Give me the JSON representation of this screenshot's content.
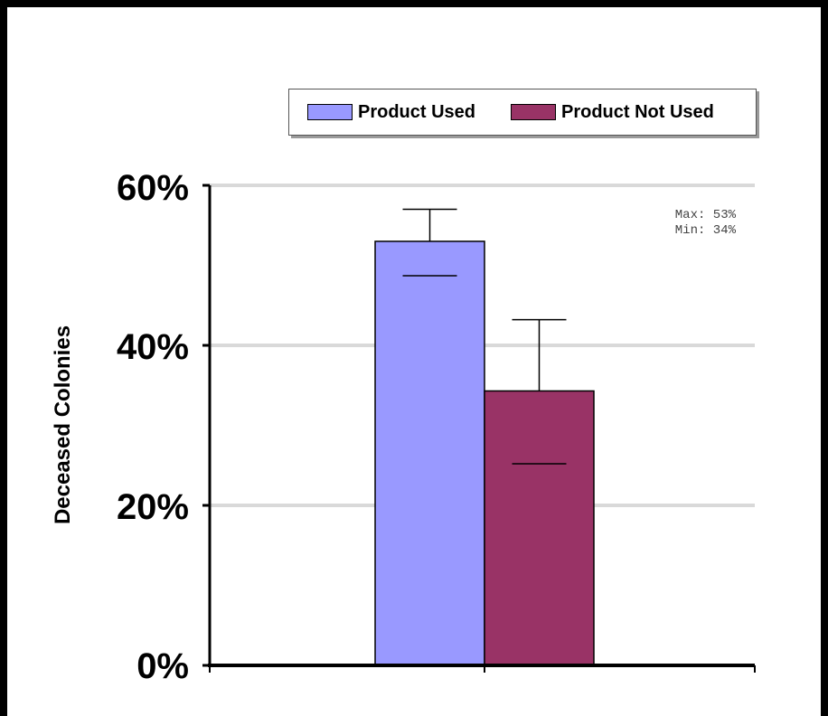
{
  "chart_data": {
    "type": "bar",
    "categories": [
      ""
    ],
    "series": [
      {
        "name": "Product Used",
        "values": [
          53
        ],
        "error_high": [
          57
        ],
        "error_low": [
          48.7
        ],
        "color": "#9999ff"
      },
      {
        "name": "Product Not Used",
        "values": [
          34.3
        ],
        "error_high": [
          43.2
        ],
        "error_low": [
          25.2
        ],
        "color": "#993366"
      }
    ],
    "title": "",
    "xlabel": "",
    "ylabel": "Deceased Colonies",
    "ylim": [
      0,
      60
    ],
    "yticks": [
      {
        "value": 0,
        "label": "0%"
      },
      {
        "value": 20,
        "label": "20%"
      },
      {
        "value": 40,
        "label": "40%"
      },
      {
        "value": 60,
        "label": "60%"
      }
    ],
    "grid": true,
    "legend_position": "top",
    "annotations": {
      "max": "Max: 53%",
      "min": "Min: 34%"
    },
    "colors": {
      "gridline": "#d9d9d9",
      "axis": "#000000",
      "frame": "#000000"
    }
  }
}
